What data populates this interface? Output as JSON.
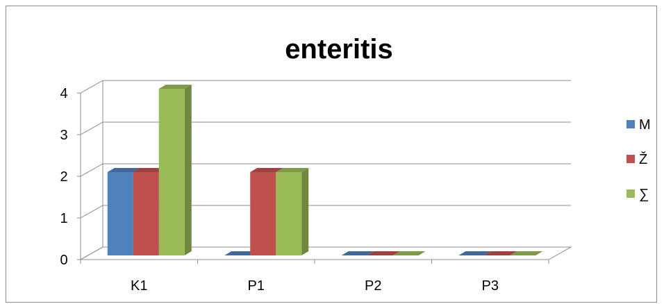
{
  "chart_data": {
    "type": "bar",
    "title": "enteritis",
    "categories": [
      "K1",
      "P1",
      "P2",
      "P3"
    ],
    "series": [
      {
        "name": "M",
        "values": [
          2,
          0,
          0,
          0
        ],
        "color": "#4f81bd"
      },
      {
        "name": "Ž",
        "values": [
          2,
          2,
          0,
          0
        ],
        "color": "#c0504d"
      },
      {
        "name": "∑",
        "values": [
          4,
          2,
          0,
          0
        ],
        "color": "#9bbb59"
      }
    ],
    "ylim": [
      0,
      4
    ],
    "yticks": [
      "0",
      "1",
      "2",
      "3",
      "4"
    ],
    "grid": true,
    "legend": "right",
    "style": "3d"
  }
}
